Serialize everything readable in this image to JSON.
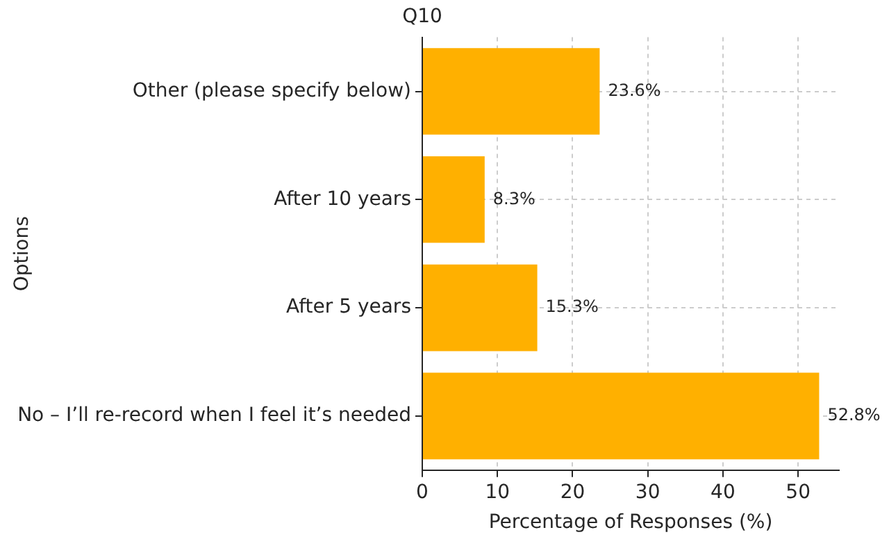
{
  "chart_data": {
    "type": "bar",
    "orientation": "horizontal",
    "title": "Q10",
    "xlabel": "Percentage of Responses (%)",
    "ylabel": "Options",
    "categories": [
      "Other (please specify below)",
      "After 10 years",
      "After 5 years",
      "No – I’ll re-record when I feel it’s needed"
    ],
    "values": [
      23.6,
      8.3,
      15.3,
      52.8
    ],
    "color": "#ffb000",
    "value_labels": [
      "23.6%",
      "8.3%",
      "15.3%",
      "52.8%"
    ],
    "xlim": [
      0,
      55.44
    ],
    "xticks": [
      0,
      10,
      20,
      30,
      40,
      50
    ],
    "grid": true,
    "legend": false
  }
}
